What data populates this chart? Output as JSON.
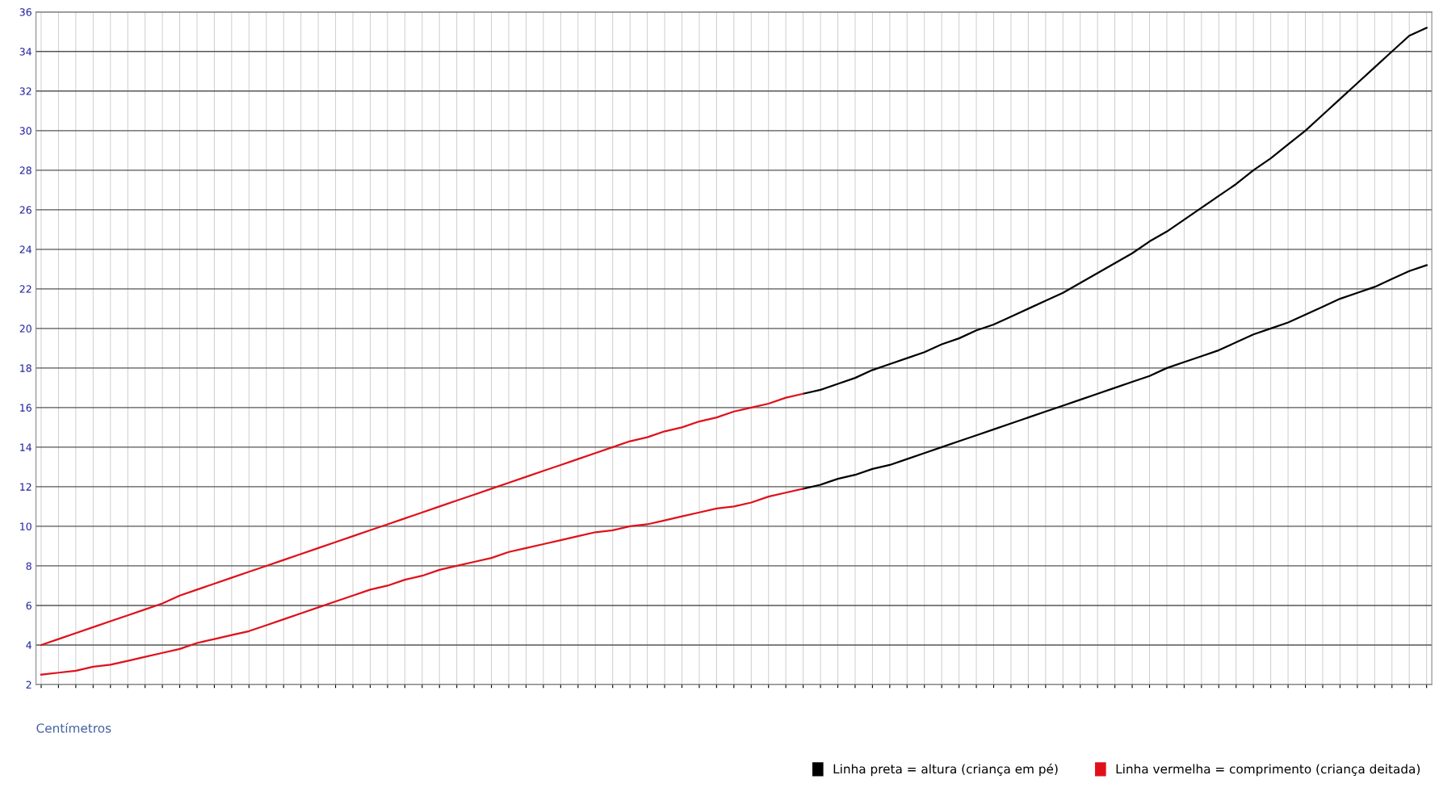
{
  "chart_data": {
    "type": "line",
    "xlabel": "Centímetros",
    "categories": [
      null,
      null,
      null,
      null,
      null,
      null,
      null,
      null,
      null,
      null,
      null,
      null,
      null,
      null,
      null,
      null,
      null,
      null,
      null,
      null,
      null,
      null,
      null,
      null,
      null,
      null,
      null,
      null,
      null,
      null,
      null,
      null,
      null,
      null,
      null,
      null,
      null,
      null,
      null,
      null,
      null,
      null,
      null,
      null,
      null,
      null,
      null,
      null,
      null,
      null,
      null,
      null,
      null,
      null,
      null,
      null,
      null,
      null,
      null,
      null,
      null,
      null,
      null,
      null,
      null,
      null,
      null,
      null,
      null,
      null,
      null,
      null,
      null,
      null,
      null,
      null,
      null,
      null,
      null,
      null,
      null
    ],
    "series": [
      {
        "name": "Linha preta = altura (criança em pé)",
        "color": "#000000",
        "values": [
          null,
          null,
          null,
          null,
          null,
          null,
          null,
          null,
          null,
          null,
          null,
          null,
          null,
          null,
          null,
          null,
          null,
          null,
          null,
          null,
          null,
          null,
          null,
          null,
          null,
          null,
          null,
          null,
          null,
          null,
          null,
          null,
          null,
          null,
          null,
          null,
          null,
          null,
          null,
          null,
          null,
          null,
          null,
          null,
          16.7,
          16.9,
          17.2,
          17.5,
          17.9,
          18.2,
          18.5,
          18.8,
          19.2,
          19.5,
          19.9,
          20.2,
          20.6,
          21.0,
          21.4,
          21.8,
          22.3,
          22.8,
          23.3,
          23.8,
          24.4,
          24.9,
          25.5,
          26.1,
          26.7,
          27.3,
          28.0,
          28.6,
          29.3,
          30.0,
          30.8,
          31.6,
          32.4,
          33.2,
          34.0,
          34.8,
          35.2
        ]
      },
      {
        "color": "#000000",
        "values": [
          null,
          null,
          null,
          null,
          null,
          null,
          null,
          null,
          null,
          null,
          null,
          null,
          null,
          null,
          null,
          null,
          null,
          null,
          null,
          null,
          null,
          null,
          null,
          null,
          null,
          null,
          null,
          null,
          null,
          null,
          null,
          null,
          null,
          null,
          null,
          null,
          null,
          null,
          null,
          null,
          null,
          null,
          null,
          null,
          11.9,
          12.1,
          12.4,
          12.6,
          12.9,
          13.1,
          13.4,
          13.7,
          14.0,
          14.3,
          14.6,
          14.9,
          15.2,
          15.5,
          15.8,
          16.1,
          16.4,
          16.7,
          17.0,
          17.3,
          17.6,
          18.0,
          18.3,
          18.6,
          18.9,
          19.3,
          19.7,
          20.0,
          20.3,
          20.7,
          21.1,
          21.5,
          21.8,
          22.1,
          22.5,
          22.9,
          23.2
        ]
      },
      {
        "name": "Linha vermelha = comprimento (criança deitada)",
        "color": "#e0101a",
        "values": [
          4.0,
          4.3,
          4.6,
          4.9,
          5.2,
          5.5,
          5.8,
          6.1,
          6.5,
          6.8,
          7.1,
          7.4,
          7.7,
          8.0,
          8.3,
          8.6,
          8.9,
          9.2,
          9.5,
          9.8,
          10.1,
          10.4,
          10.7,
          11.0,
          11.3,
          11.6,
          11.9,
          12.2,
          12.5,
          12.8,
          13.1,
          13.4,
          13.7,
          14.0,
          14.3,
          14.5,
          14.8,
          15.0,
          15.3,
          15.5,
          15.8,
          16.0,
          16.2,
          16.5,
          16.7,
          null,
          null,
          null,
          null,
          null,
          null,
          null,
          null,
          null,
          null,
          null,
          null,
          null,
          null,
          null,
          null,
          null,
          null,
          null,
          null,
          null,
          null,
          null,
          null,
          null,
          null,
          null,
          null,
          null,
          null,
          null,
          null,
          null,
          null,
          null,
          null
        ]
      },
      {
        "color": "#e0101a",
        "values": [
          2.5,
          2.6,
          2.7,
          2.9,
          3.0,
          3.2,
          3.4,
          3.6,
          3.8,
          4.1,
          4.3,
          4.5,
          4.7,
          5.0,
          5.3,
          5.6,
          5.9,
          6.2,
          6.5,
          6.8,
          7.0,
          7.3,
          7.5,
          7.8,
          8.0,
          8.2,
          8.4,
          8.7,
          8.9,
          9.1,
          9.3,
          9.5,
          9.7,
          9.8,
          10.0,
          10.1,
          10.3,
          10.5,
          10.7,
          10.9,
          11.0,
          11.2,
          11.5,
          11.7,
          11.9,
          null,
          null,
          null,
          null,
          null,
          null,
          null,
          null,
          null,
          null,
          null,
          null,
          null,
          null,
          null,
          null,
          null,
          null,
          null,
          null,
          null,
          null,
          null,
          null,
          null,
          null,
          null,
          null,
          null,
          null,
          null,
          null,
          null,
          null,
          null,
          null
        ]
      }
    ],
    "ylim": [
      2,
      36
    ],
    "yticks": [
      2,
      4,
      6,
      8,
      10,
      12,
      14,
      16,
      18,
      20,
      22,
      24,
      26,
      28,
      30,
      32,
      34,
      36
    ],
    "grid": true,
    "legend": "bottom right",
    "marker": "none",
    "line_style": "solid"
  }
}
